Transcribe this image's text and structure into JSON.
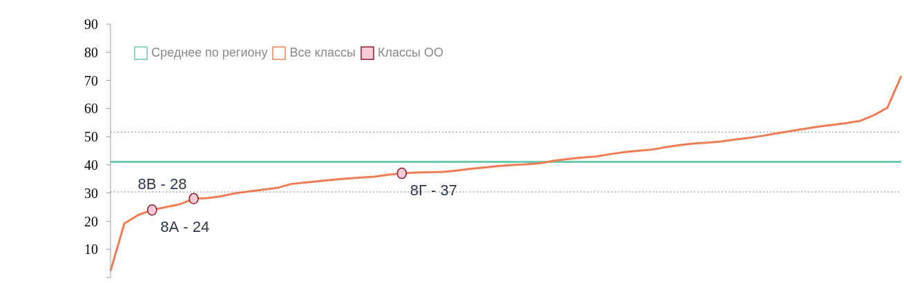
{
  "chart_data": {
    "type": "line",
    "legend": "top left",
    "tick_labels": "y",
    "grid": false,
    "ylim": [
      0,
      90
    ],
    "yticks": [
      {
        "value": 0,
        "label": null
      },
      10,
      20,
      30,
      40,
      50,
      60,
      70,
      80,
      90
    ],
    "categories": [
      null,
      null,
      null,
      null,
      null,
      null,
      null,
      null,
      null,
      null,
      null,
      null,
      null,
      null,
      null,
      null,
      null,
      null,
      null,
      null,
      null,
      null,
      null,
      null,
      null,
      null,
      null,
      null,
      null,
      null,
      null,
      null,
      null,
      null,
      null,
      null,
      null,
      null,
      null,
      null,
      null,
      null,
      null,
      null,
      null,
      null,
      null,
      null,
      null,
      null,
      null,
      null,
      null,
      null,
      null,
      null,
      null,
      null
    ],
    "ref_lines": [
      {
        "axis": "y",
        "value": 51.6,
        "label": null,
        "color": "#aaaaaa",
        "line_style": "dotted"
      },
      {
        "axis": "y",
        "value": 30.4,
        "label": null,
        "color": "#aaaaaa",
        "line_style": "dotted"
      }
    ],
    "series": [
      {
        "name": "Среднее по региону",
        "color": "#6dcbb0",
        "values": [
          41.1,
          41.1,
          41.1,
          41.1,
          41.1,
          41.1,
          41.1,
          41.1,
          41.1,
          41.1,
          41.1,
          41.1,
          41.1,
          41.1,
          41.1,
          41.1,
          41.1,
          41.1,
          41.1,
          41.1,
          41.1,
          41.1,
          41.1,
          41.1,
          41.1,
          41.1,
          41.1,
          41.1,
          41.1,
          41.1,
          41.1,
          41.1,
          41.1,
          41.1,
          41.1,
          41.1,
          41.1,
          41.1,
          41.1,
          41.1,
          41.1,
          41.1,
          41.1,
          41.1,
          41.1,
          41.1,
          41.1,
          41.1,
          41.1,
          41.1,
          41.1,
          41.1,
          41.1,
          41.1,
          41.1,
          41.1,
          41.1,
          41.1
        ]
      },
      {
        "name": "Все классы",
        "color": "#f07c55",
        "values": [
          2.3,
          19.2,
          22.2,
          24,
          25,
          26,
          28,
          28.2,
          28.9,
          29.9,
          30.6,
          31.2,
          31.8,
          33.2,
          33.7,
          34.2,
          34.7,
          35.1,
          35.5,
          35.8,
          36.5,
          37,
          37.3,
          37.4,
          37.5,
          38,
          38.6,
          39.1,
          39.6,
          40,
          40.2,
          40.6,
          41.5,
          42.1,
          42.6,
          43,
          43.8,
          44.5,
          45,
          45.4,
          46.3,
          47,
          47.6,
          47.9,
          48.3,
          49,
          49.6,
          50.3,
          51.2,
          52,
          52.8,
          53.6,
          54.2,
          54.8,
          55.6,
          57.6,
          60.3,
          71.6
        ]
      },
      {
        "name": "Классы ОО",
        "type": "scatter",
        "color": "#f9cbd6",
        "marker": "circle",
        "values": [
          null,
          null,
          null,
          24,
          null,
          null,
          28,
          null,
          null,
          null,
          null,
          null,
          null,
          null,
          null,
          null,
          null,
          null,
          null,
          null,
          null,
          37,
          null,
          null,
          null,
          null,
          null,
          null,
          null,
          null,
          null,
          null,
          null,
          null,
          null,
          null,
          null,
          null,
          null,
          null,
          null,
          null,
          null,
          null,
          null,
          null,
          null,
          null,
          null,
          null,
          null,
          null,
          null,
          null,
          null,
          null,
          null,
          null
        ],
        "value_labels": [
          null,
          null,
          null,
          "8А - 24",
          null,
          null,
          "8В - 28",
          null,
          null,
          null,
          null,
          null,
          null,
          null,
          null,
          null,
          null,
          null,
          null,
          null,
          null,
          "8Г - 37",
          null,
          null,
          null,
          null,
          null,
          null,
          null,
          null,
          null,
          null,
          null,
          null,
          null,
          null,
          null,
          null,
          null,
          null,
          null,
          null,
          null,
          null,
          null,
          null,
          null,
          null,
          null,
          null,
          null,
          null,
          null,
          null,
          null,
          null,
          null,
          null
        ]
      }
    ]
  }
}
